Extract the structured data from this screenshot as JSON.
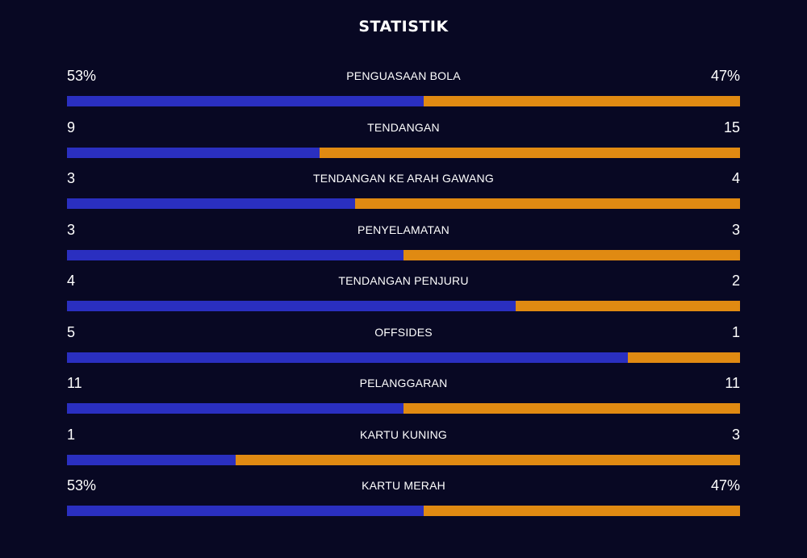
{
  "title": "STATISTIK",
  "colors": {
    "background": "#080823",
    "home": "#2a2fc0",
    "away": "#e08a12"
  },
  "stats": [
    {
      "label": "PENGUASAAN BOLA",
      "home": "53%",
      "away": "47%",
      "home_share": 0.53
    },
    {
      "label": "TENDANGAN",
      "home": "9",
      "away": "15",
      "home_share": 0.375
    },
    {
      "label": "TENDANGAN KE ARAH GAWANG",
      "home": "3",
      "away": "4",
      "home_share": 0.4286
    },
    {
      "label": "PENYELAMATAN",
      "home": "3",
      "away": "3",
      "home_share": 0.5
    },
    {
      "label": "TENDANGAN PENJURU",
      "home": "4",
      "away": "2",
      "home_share": 0.6667
    },
    {
      "label": "OFFSIDES",
      "home": "5",
      "away": "1",
      "home_share": 0.8333
    },
    {
      "label": "PELANGGARAN",
      "home": "11",
      "away": "11",
      "home_share": 0.5
    },
    {
      "label": "KARTU KUNING",
      "home": "1",
      "away": "3",
      "home_share": 0.25
    },
    {
      "label": "KARTU MERAH",
      "home": "53%",
      "away": "47%",
      "home_share": 0.53
    }
  ]
}
